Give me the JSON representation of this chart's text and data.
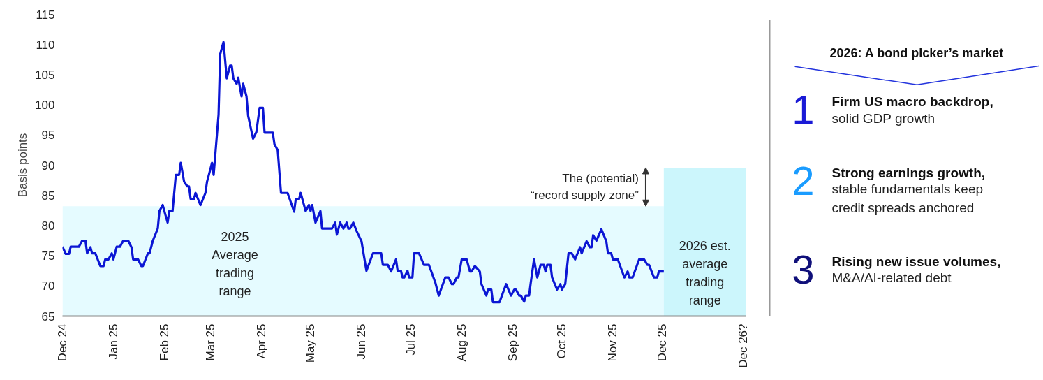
{
  "chart_data": [
    {
      "type": "line",
      "ylabel": "Basis points",
      "ylim": [
        65,
        115
      ],
      "yticks": [
        65,
        70,
        75,
        80,
        85,
        90,
        95,
        100,
        105,
        110,
        115
      ],
      "xlim": [
        "2024-12-01",
        "2026-01-21"
      ],
      "xticks": [
        {
          "value": "2024-12-01",
          "label": "Dec 24"
        },
        {
          "value": "2025-01-01",
          "label": "Jan 25"
        },
        {
          "value": "2025-02-01",
          "label": "Feb 25"
        },
        {
          "value": "2025-03-01",
          "label": "Mar 25"
        },
        {
          "value": "2025-04-01",
          "label": "Apr 25"
        },
        {
          "value": "2025-05-01",
          "label": "May 25"
        },
        {
          "value": "2025-06-01",
          "label": "Jun 25"
        },
        {
          "value": "2025-07-01",
          "label": "Jul 25"
        },
        {
          "value": "2025-08-01",
          "label": "Aug 25"
        },
        {
          "value": "2025-09-01",
          "label": "Sep 25"
        },
        {
          "value": "2025-10-01",
          "label": "Oct 25"
        },
        {
          "value": "2025-11-01",
          "label": "Nov 25"
        },
        {
          "value": "2025-12-01",
          "label": "Dec 25"
        }
      ],
      "grid": false,
      "series": [
        {
          "type": "area",
          "color": "#e5fbff",
          "x": [
            "2024-12-01",
            "2025-12-02"
          ],
          "values": [
            83.2,
            83.2
          ]
        },
        {
          "type": "area",
          "color": "#ccf6fc",
          "x": [
            "2025-12-02",
            "2026-01-21"
          ],
          "values": [
            89.6,
            89.6
          ]
        },
        {
          "type": "line",
          "color": "#0b16d4",
          "x": [
            "2024-12-01",
            "2024-12-03",
            "2024-12-05",
            "2024-12-06",
            "2024-12-11",
            "2024-12-13",
            "2024-12-15",
            "2024-12-16",
            "2024-12-18",
            "2024-12-19",
            "2024-12-21",
            "2024-12-24",
            "2024-12-26",
            "2024-12-27",
            "2024-12-29",
            "2024-12-31",
            "2025-01-01",
            "2025-01-03",
            "2025-01-05",
            "2025-01-07",
            "2025-01-10",
            "2025-01-12",
            "2025-01-13",
            "2025-01-16",
            "2025-01-18",
            "2025-01-19",
            "2025-01-22",
            "2025-01-23",
            "2025-01-25",
            "2025-01-28",
            "2025-01-29",
            "2025-01-31",
            "2025-02-01",
            "2025-02-03",
            "2025-02-04",
            "2025-02-06",
            "2025-02-08",
            "2025-02-10",
            "2025-02-11",
            "2025-02-13",
            "2025-02-15",
            "2025-02-16",
            "2025-02-17",
            "2025-02-19",
            "2025-02-20",
            "2025-02-23",
            "2025-02-26",
            "2025-02-27",
            "2025-02-28",
            "2025-03-02",
            "2025-03-03",
            "2025-03-06",
            "2025-03-07",
            "2025-03-09",
            "2025-03-11",
            "2025-03-13",
            "2025-03-14",
            "2025-03-15",
            "2025-03-17",
            "2025-03-18",
            "2025-03-20",
            "2025-03-21",
            "2025-03-23",
            "2025-03-24",
            "2025-03-27",
            "2025-03-29",
            "2025-03-31",
            "2025-04-02",
            "2025-04-03",
            "2025-04-08",
            "2025-04-09",
            "2025-04-11",
            "2025-04-13",
            "2025-04-17",
            "2025-04-21",
            "2025-04-22",
            "2025-04-24",
            "2025-04-25",
            "2025-04-28",
            "2025-04-30",
            "2025-05-01",
            "2025-05-02",
            "2025-05-04",
            "2025-05-07",
            "2025-05-08",
            "2025-05-14",
            "2025-05-16",
            "2025-05-17",
            "2025-05-19",
            "2025-05-21",
            "2025-05-23",
            "2025-05-24",
            "2025-05-25",
            "2025-05-27",
            "2025-05-29",
            "2025-06-01",
            "2025-06-04",
            "2025-06-08",
            "2025-06-13",
            "2025-06-14",
            "2025-06-17",
            "2025-06-19",
            "2025-06-22",
            "2025-06-23",
            "2025-06-25",
            "2025-06-26",
            "2025-06-27",
            "2025-06-29",
            "2025-06-30",
            "2025-07-02",
            "2025-07-03",
            "2025-07-06",
            "2025-07-09",
            "2025-07-12",
            "2025-07-16",
            "2025-07-18",
            "2025-07-22",
            "2025-07-24",
            "2025-07-26",
            "2025-07-27",
            "2025-07-29",
            "2025-07-30",
            "2025-08-01",
            "2025-08-04",
            "2025-08-06",
            "2025-08-07",
            "2025-08-09",
            "2025-08-12",
            "2025-08-13",
            "2025-08-16",
            "2025-08-17",
            "2025-08-19",
            "2025-08-20",
            "2025-08-24",
            "2025-08-28",
            "2025-08-31",
            "2025-09-02",
            "2025-09-03",
            "2025-09-05",
            "2025-09-06",
            "2025-09-08",
            "2025-09-09",
            "2025-09-11",
            "2025-09-12",
            "2025-09-14",
            "2025-09-16",
            "2025-09-18",
            "2025-09-20",
            "2025-09-21",
            "2025-09-22",
            "2025-09-24",
            "2025-09-25",
            "2025-09-28",
            "2025-09-30",
            "2025-10-01",
            "2025-10-03",
            "2025-10-05",
            "2025-10-07",
            "2025-10-09",
            "2025-10-12",
            "2025-10-13",
            "2025-10-16",
            "2025-10-18",
            "2025-10-19",
            "2025-10-20",
            "2025-10-22",
            "2025-10-25",
            "2025-10-28",
            "2025-10-29",
            "2025-10-31",
            "2025-11-01",
            "2025-11-04",
            "2025-11-08",
            "2025-11-10",
            "2025-11-11",
            "2025-11-13",
            "2025-11-17",
            "2025-11-20",
            "2025-11-22",
            "2025-11-23",
            "2025-11-26",
            "2025-11-28",
            "2025-11-29",
            "2025-12-02"
          ],
          "values": [
            76.5,
            75.3,
            75.3,
            76.5,
            76.5,
            77.5,
            77.5,
            75.4,
            76.4,
            75.4,
            75.4,
            73.3,
            73.3,
            74.4,
            74.4,
            75.4,
            74.4,
            76.5,
            76.5,
            77.5,
            77.5,
            76.4,
            74.4,
            74.4,
            73.3,
            73.3,
            75.4,
            75.4,
            77.5,
            79.5,
            82.4,
            83.4,
            82.4,
            80.5,
            82.4,
            82.4,
            88.4,
            88.4,
            90.4,
            87.3,
            86.5,
            86.5,
            84.4,
            84.4,
            85.4,
            83.4,
            85.4,
            87.3,
            88.3,
            90.4,
            88.4,
            98.4,
            108.4,
            110.4,
            104.4,
            106.5,
            106.5,
            104.4,
            103.5,
            104.5,
            101.4,
            103.5,
            101.4,
            98.2,
            94.4,
            95.5,
            99.5,
            99.5,
            95.4,
            95.4,
            93.5,
            92.5,
            85.4,
            85.4,
            82.3,
            84.4,
            84.4,
            85.4,
            82.4,
            83.4,
            82.4,
            83.4,
            80.5,
            82.4,
            79.5,
            79.5,
            80.5,
            78.5,
            80.5,
            79.5,
            80.5,
            79.5,
            79.5,
            80.5,
            79.1,
            77.4,
            72.5,
            75.4,
            75.4,
            73.5,
            73.5,
            72.4,
            74.4,
            72.5,
            72.5,
            71.4,
            71.4,
            72.5,
            71.4,
            71.4,
            75.4,
            75.4,
            73.5,
            73.5,
            70.5,
            68.4,
            71.4,
            71.4,
            70.3,
            70.3,
            71.4,
            71.4,
            74.4,
            74.4,
            72.4,
            72.4,
            73.3,
            72.4,
            70.3,
            68.4,
            69.4,
            69.4,
            67.3,
            67.3,
            70.3,
            68.4,
            69.4,
            69.4,
            68.4,
            68.4,
            67.4,
            68.4,
            68.4,
            70.5,
            74.4,
            71.4,
            73.5,
            73.5,
            72.4,
            73.5,
            73.5,
            71.4,
            69.4,
            70.3,
            69.4,
            70.3,
            75.4,
            75.4,
            74.4,
            76.4,
            75.4,
            77.4,
            76.4,
            76.4,
            78.4,
            77.5,
            79.4,
            77.4,
            75.4,
            75.4,
            74.4,
            74.4,
            71.4,
            72.4,
            71.4,
            71.4,
            74.4,
            74.4,
            73.5,
            73.5,
            71.4,
            71.4,
            72.4,
            72.4
          ]
        }
      ],
      "annotations": [
        "2025\nAverage\ntrading\nrange",
        "2026 est.\naverage\ntrading\nrange",
        {
          "text": "The (potential)\n“record supply zone”",
          "x": "2025-11-21",
          "y": 83.2
        },
        "Dec 26?"
      ]
    },
    {
      "type": "other",
      "title": "2026: A bond picker’s market",
      "annotations": [
        "1",
        "Firm US macro backdrop,",
        "solid GDP growth",
        "2",
        "Strong earnings growth,",
        "stable fundamentals keep\ncredit spreads anchored",
        "3",
        "Rising new issue volumes,",
        "M&A/AI-related debt"
      ]
    }
  ]
}
